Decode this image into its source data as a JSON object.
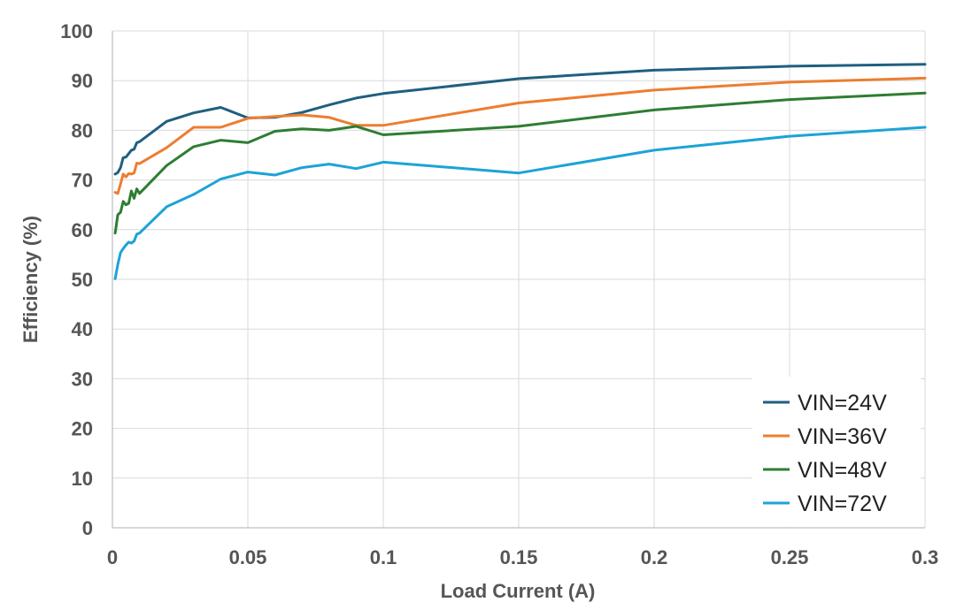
{
  "chart_data": {
    "type": "line",
    "title": "",
    "xlabel": "Load Current (A)",
    "ylabel": "Efficiency (%)",
    "xlim": [
      0,
      0.3
    ],
    "ylim": [
      0,
      100
    ],
    "x_ticks": [
      "0",
      "0.05",
      "0.1",
      "0.15",
      "0.2",
      "0.25",
      "0.3"
    ],
    "y_ticks": [
      "0",
      "10",
      "20",
      "30",
      "40",
      "50",
      "60",
      "70",
      "80",
      "90",
      "100"
    ],
    "grid": true,
    "legend_position": "bottom-right",
    "series": [
      {
        "name": "VIN=24V",
        "color": "#1f5f7f",
        "points": [
          [
            0.001,
            71.2
          ],
          [
            0.002,
            71.5
          ],
          [
            0.003,
            72.5
          ],
          [
            0.004,
            74.5
          ],
          [
            0.005,
            74.6
          ],
          [
            0.006,
            75.3
          ],
          [
            0.007,
            76.0
          ],
          [
            0.008,
            76.2
          ],
          [
            0.009,
            77.5
          ],
          [
            0.01,
            77.7
          ],
          [
            0.02,
            81.8
          ],
          [
            0.03,
            83.5
          ],
          [
            0.04,
            84.6
          ],
          [
            0.05,
            82.5
          ],
          [
            0.06,
            82.6
          ],
          [
            0.07,
            83.6
          ],
          [
            0.08,
            85.1
          ],
          [
            0.09,
            86.5
          ],
          [
            0.1,
            87.4
          ],
          [
            0.15,
            90.4
          ],
          [
            0.2,
            92.1
          ],
          [
            0.25,
            92.9
          ],
          [
            0.3,
            93.3
          ]
        ]
      },
      {
        "name": "VIN=36V",
        "color": "#ed7d31",
        "points": [
          [
            0.001,
            67.5
          ],
          [
            0.002,
            67.3
          ],
          [
            0.003,
            69.2
          ],
          [
            0.004,
            71.2
          ],
          [
            0.005,
            70.6
          ],
          [
            0.006,
            71.3
          ],
          [
            0.007,
            71.2
          ],
          [
            0.008,
            71.4
          ],
          [
            0.009,
            73.4
          ],
          [
            0.01,
            73.3
          ],
          [
            0.02,
            76.5
          ],
          [
            0.03,
            80.6
          ],
          [
            0.04,
            80.6
          ],
          [
            0.05,
            82.4
          ],
          [
            0.06,
            82.8
          ],
          [
            0.07,
            83.1
          ],
          [
            0.08,
            82.6
          ],
          [
            0.09,
            81.0
          ],
          [
            0.1,
            81.0
          ],
          [
            0.15,
            85.5
          ],
          [
            0.2,
            88.1
          ],
          [
            0.25,
            89.7
          ],
          [
            0.3,
            90.5
          ]
        ]
      },
      {
        "name": "VIN=48V",
        "color": "#2e7d32",
        "points": [
          [
            0.001,
            59.3
          ],
          [
            0.002,
            63.0
          ],
          [
            0.003,
            63.5
          ],
          [
            0.004,
            65.7
          ],
          [
            0.005,
            65.0
          ],
          [
            0.006,
            65.3
          ],
          [
            0.007,
            67.8
          ],
          [
            0.008,
            66.3
          ],
          [
            0.009,
            68.2
          ],
          [
            0.01,
            67.3
          ],
          [
            0.02,
            72.9
          ],
          [
            0.03,
            76.7
          ],
          [
            0.04,
            78.0
          ],
          [
            0.05,
            77.5
          ],
          [
            0.06,
            79.8
          ],
          [
            0.07,
            80.3
          ],
          [
            0.08,
            80.0
          ],
          [
            0.09,
            80.8
          ],
          [
            0.1,
            79.1
          ],
          [
            0.15,
            80.8
          ],
          [
            0.2,
            84.1
          ],
          [
            0.25,
            86.2
          ],
          [
            0.3,
            87.5
          ]
        ]
      },
      {
        "name": "VIN=72V",
        "color": "#1ca3d8",
        "points": [
          [
            0.001,
            50.1
          ],
          [
            0.002,
            53.0
          ],
          [
            0.003,
            55.4
          ],
          [
            0.004,
            56.2
          ],
          [
            0.005,
            56.9
          ],
          [
            0.006,
            57.5
          ],
          [
            0.007,
            57.3
          ],
          [
            0.008,
            57.7
          ],
          [
            0.009,
            59.1
          ],
          [
            0.01,
            59.3
          ],
          [
            0.02,
            64.6
          ],
          [
            0.03,
            67.1
          ],
          [
            0.04,
            70.2
          ],
          [
            0.05,
            71.6
          ],
          [
            0.06,
            71.0
          ],
          [
            0.07,
            72.5
          ],
          [
            0.08,
            73.2
          ],
          [
            0.09,
            72.3
          ],
          [
            0.1,
            73.6
          ],
          [
            0.15,
            71.4
          ],
          [
            0.2,
            76.0
          ],
          [
            0.25,
            78.8
          ],
          [
            0.3,
            80.6
          ]
        ]
      }
    ]
  }
}
